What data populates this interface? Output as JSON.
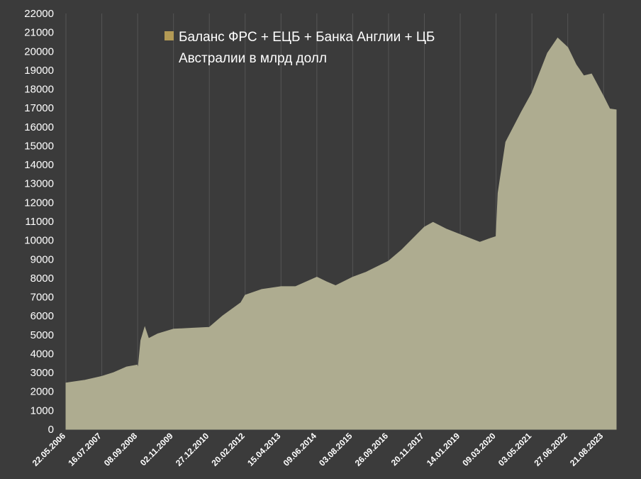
{
  "chart_data": {
    "type": "area",
    "title": "",
    "xlabel": "",
    "ylabel": "",
    "ylim": [
      0,
      22000
    ],
    "yticks": [
      0,
      1000,
      2000,
      3000,
      4000,
      5000,
      6000,
      7000,
      8000,
      9000,
      10000,
      11000,
      12000,
      13000,
      14000,
      15000,
      16000,
      17000,
      18000,
      19000,
      20000,
      21000,
      22000
    ],
    "grid": "vertical",
    "legend_position": "top-left",
    "x_tick_labels": [
      "22.05.2006",
      "16.07.2007",
      "08.09.2008",
      "02.11.2009",
      "27.12.2010",
      "20.02.2012",
      "15.04.2013",
      "09.06.2014",
      "03.08.2015",
      "26.09.2016",
      "20.11.2017",
      "14.01.2019",
      "09.03.2020",
      "03.05.2021",
      "27.06.2022",
      "21.08.2023"
    ],
    "x_date_range": [
      "22.05.2006",
      "2024-02"
    ],
    "series": [
      {
        "name": "Баланс ФРС + ЕЦБ + Банка Англии + ЦБ Австралии в млрд долл",
        "color": "#aeac90",
        "points": [
          [
            "2006-05-22",
            2450
          ],
          [
            "2006-09-01",
            2520
          ],
          [
            "2007-01-01",
            2600
          ],
          [
            "2007-07-16",
            2800
          ],
          [
            "2007-12-01",
            3000
          ],
          [
            "2008-05-01",
            3300
          ],
          [
            "2008-09-01",
            3400
          ],
          [
            "2008-09-15",
            3250
          ],
          [
            "2008-10-15",
            4700
          ],
          [
            "2008-12-01",
            5400
          ],
          [
            "2009-01-15",
            4800
          ],
          [
            "2009-05-01",
            5050
          ],
          [
            "2009-11-02",
            5300
          ],
          [
            "2010-06-01",
            5350
          ],
          [
            "2010-12-27",
            5400
          ],
          [
            "2011-06-01",
            6000
          ],
          [
            "2012-01-01",
            6700
          ],
          [
            "2012-02-20",
            7100
          ],
          [
            "2012-09-01",
            7400
          ],
          [
            "2013-04-15",
            7550
          ],
          [
            "2013-10-01",
            7550
          ],
          [
            "2014-06-09",
            8050
          ],
          [
            "2014-10-01",
            7800
          ],
          [
            "2015-01-15",
            7600
          ],
          [
            "2015-08-03",
            8050
          ],
          [
            "2016-01-01",
            8300
          ],
          [
            "2016-09-26",
            8900
          ],
          [
            "2017-03-01",
            9500
          ],
          [
            "2017-11-20",
            10700
          ],
          [
            "2018-03-01",
            10950
          ],
          [
            "2018-08-01",
            10600
          ],
          [
            "2019-01-14",
            10300
          ],
          [
            "2019-09-01",
            9900
          ],
          [
            "2020-01-01",
            10100
          ],
          [
            "2020-03-09",
            10200
          ],
          [
            "2020-04-01",
            12500
          ],
          [
            "2020-07-01",
            15200
          ],
          [
            "2021-01-01",
            16800
          ],
          [
            "2021-05-03",
            17800
          ],
          [
            "2021-11-01",
            19900
          ],
          [
            "2022-03-01",
            20700
          ],
          [
            "2022-06-27",
            20200
          ],
          [
            "2022-10-01",
            19300
          ],
          [
            "2023-01-01",
            18700
          ],
          [
            "2023-04-01",
            18800
          ],
          [
            "2023-08-21",
            17600
          ],
          [
            "2023-11-01",
            16950
          ],
          [
            "2024-01-15",
            16900
          ]
        ]
      }
    ]
  }
}
